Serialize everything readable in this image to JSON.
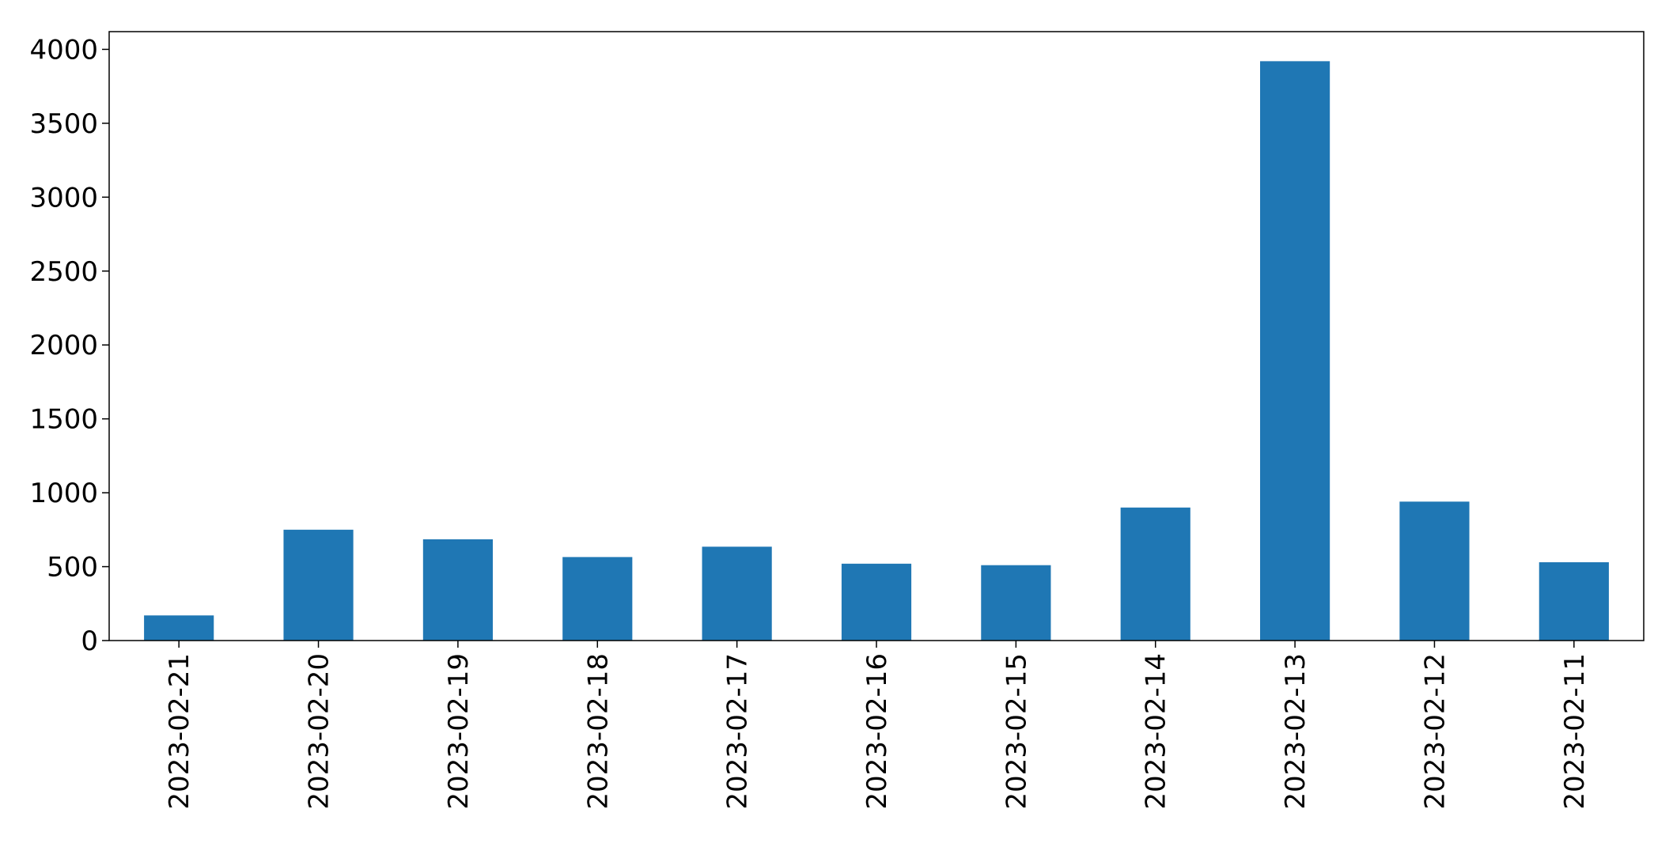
{
  "chart_data": {
    "type": "bar",
    "categories": [
      "2023-02-21",
      "2023-02-20",
      "2023-02-19",
      "2023-02-18",
      "2023-02-17",
      "2023-02-16",
      "2023-02-15",
      "2023-02-14",
      "2023-02-13",
      "2023-02-12",
      "2023-02-11"
    ],
    "values": [
      170,
      750,
      685,
      565,
      635,
      520,
      510,
      900,
      3920,
      940,
      530
    ],
    "title": "",
    "xlabel": "",
    "ylabel": "",
    "ylim": [
      0,
      4120
    ],
    "yticks": [
      0,
      500,
      1000,
      1500,
      2000,
      2500,
      3000,
      3500,
      4000
    ],
    "bar_color": "#1f77b4",
    "grid": false,
    "legend": "none"
  }
}
